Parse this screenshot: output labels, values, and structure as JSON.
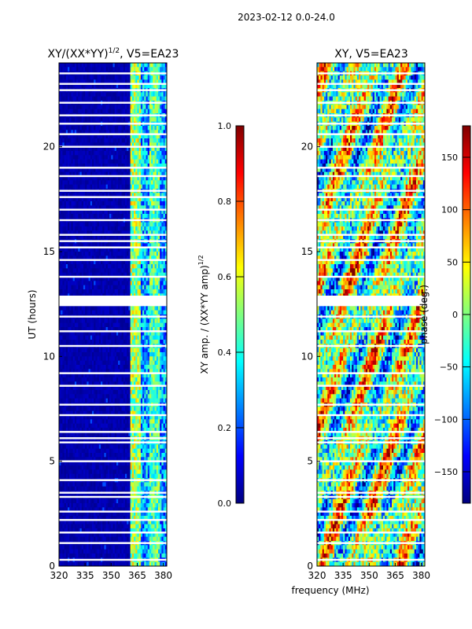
{
  "figure": {
    "suptitle": "2023-02-12 0.0-24.0",
    "xlabel": "frequency (MHz)"
  },
  "chart_data": [
    {
      "type": "heatmap",
      "title_main": "XY/(XX*YY)",
      "title_sup": "1/2",
      "title_tail": ", V5=EA23",
      "xlabel": "",
      "ylabel": "UT (hours)",
      "xlim": [
        320,
        382
      ],
      "ylim": [
        0,
        24
      ],
      "xticks": [
        "320",
        "335",
        "350",
        "365",
        "380"
      ],
      "yticks": [
        "0",
        "5",
        "10",
        "15",
        "20"
      ],
      "colorbar": {
        "label_main": "XY amp. / (XX*YY amp)",
        "label_sup": "1/2",
        "range": [
          0.0,
          1.0
        ],
        "ticks": [
          "0.0",
          "0.2",
          "0.4",
          "0.6",
          "0.8",
          "1.0"
        ]
      },
      "colormap": "jet",
      "blank_rows_hours": [
        0.3,
        1.1,
        1.6,
        2.2,
        2.6,
        3.3,
        3.5,
        4.1,
        5.0,
        5.9,
        6.1,
        6.4,
        7.2,
        7.7,
        8.6,
        9.2,
        10.5,
        11.2,
        11.9,
        12.5,
        12.8,
        13.8,
        14.6,
        15.2,
        15.5,
        15.8,
        16.5,
        17.0,
        17.6,
        17.9,
        18.6,
        19.0,
        20.0,
        20.6,
        21.1,
        21.5,
        22.1,
        22.7,
        23.0,
        23.5
      ]
    },
    {
      "type": "heatmap",
      "title": "XY, V5=EA23",
      "xlabel": "",
      "ylabel": "",
      "xlim": [
        320,
        382
      ],
      "ylim": [
        0,
        24
      ],
      "xticks": [
        "320",
        "335",
        "350",
        "365",
        "380"
      ],
      "yticks": [
        "0",
        "5",
        "10",
        "15",
        "20"
      ],
      "colorbar": {
        "label": "phase (deg.)",
        "range": [
          -180,
          180
        ],
        "ticks": [
          "−150",
          "−100",
          "−50",
          "0",
          "50",
          "100",
          "150"
        ]
      },
      "colormap": "jet",
      "blank_rows_hours": [
        0.3,
        1.1,
        1.6,
        2.2,
        2.6,
        3.3,
        3.5,
        4.1,
        5.0,
        5.9,
        6.1,
        6.4,
        7.2,
        7.7,
        8.6,
        9.2,
        10.5,
        11.2,
        11.9,
        12.5,
        12.8,
        13.8,
        14.6,
        15.2,
        15.5,
        15.8,
        16.5,
        17.0,
        17.6,
        17.9,
        18.6,
        19.0,
        20.0,
        20.6,
        21.1,
        21.5,
        22.1,
        22.7,
        23.0,
        23.5
      ]
    }
  ]
}
